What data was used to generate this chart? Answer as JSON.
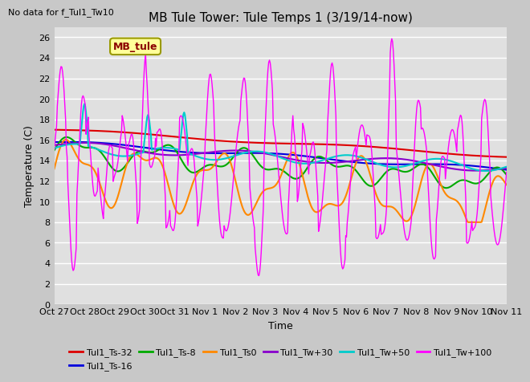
{
  "title": "MB Tule Tower: Tule Temps 1 (3/19/14-now)",
  "no_data_text": "No data for f_Tul1_Tw10",
  "xlabel": "Time",
  "ylabel": "Temperature (C)",
  "ylim": [
    0,
    27
  ],
  "yticks": [
    0,
    2,
    4,
    6,
    8,
    10,
    12,
    14,
    16,
    18,
    20,
    22,
    24,
    26
  ],
  "fig_bg": "#c8c8c8",
  "plot_bg": "#e0e0e0",
  "series": [
    {
      "label": "Tul1_Ts-32",
      "color": "#dd0000",
      "lw": 1.5
    },
    {
      "label": "Tul1_Ts-16",
      "color": "#0000dd",
      "lw": 1.5
    },
    {
      "label": "Tul1_Ts-8",
      "color": "#00aa00",
      "lw": 1.5
    },
    {
      "label": "Tul1_Ts0",
      "color": "#ff8800",
      "lw": 1.5
    },
    {
      "label": "Tul1_Tw+30",
      "color": "#8800cc",
      "lw": 1.5
    },
    {
      "label": "Tul1_Tw+50",
      "color": "#00cccc",
      "lw": 1.5
    },
    {
      "label": "Tul1_Tw+100",
      "color": "#ff00ff",
      "lw": 1.0
    }
  ],
  "x_tick_labels": [
    "Oct 27",
    "Oct 28",
    "Oct 29",
    "Oct 30",
    "Oct 31",
    "Nov 1",
    "Nov 2",
    "Nov 3",
    "Nov 4",
    "Nov 5",
    "Nov 6",
    "Nov 7",
    "Nov 8",
    "Nov 9",
    "Nov 10",
    "Nov 11"
  ],
  "title_fontsize": 11,
  "axis_fontsize": 9,
  "tick_fontsize": 8
}
